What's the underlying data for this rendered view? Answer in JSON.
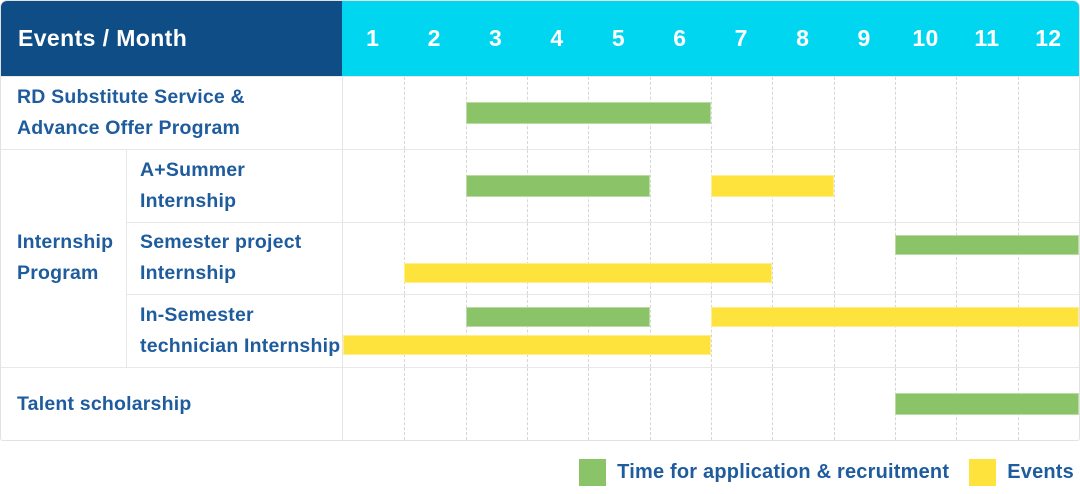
{
  "header": {
    "title": "Events / Month"
  },
  "colors": {
    "header_bg": "#0e4d85",
    "months_bg": "#01d6f1",
    "label_text": "#1e5c9d",
    "grid_dashed": "#d6d6d6",
    "row_divider": "#e8e8e8",
    "outer_border": "#e2e2e2",
    "application_green": "#8ac368",
    "events_yellow": "#ffe33d"
  },
  "chart_data": {
    "type": "bar",
    "subtype": "gantt-table",
    "title": "Events / Month",
    "x_axis": {
      "label": "Month",
      "ticks": [
        "1",
        "2",
        "3",
        "4",
        "5",
        "6",
        "7",
        "8",
        "9",
        "10",
        "11",
        "12"
      ],
      "range": [
        1,
        12
      ],
      "gridlines": "dashed-vertical"
    },
    "series": {
      "application": {
        "label": "Time for application & recruitment",
        "color": "#8ac368"
      },
      "events": {
        "label": "Events",
        "color": "#ffe33d"
      }
    },
    "group": {
      "id": "internship-program",
      "label_lines": [
        "Internship",
        "Program"
      ],
      "row_span": [
        1,
        3
      ]
    },
    "rows": [
      {
        "id": "rd-substitute-service",
        "group": null,
        "label_lines": [
          "RD Substitute Service &",
          "Advance Offer Program"
        ],
        "bars": [
          {
            "series": "application",
            "start_month": 3,
            "end_month": 6,
            "line": "center"
          }
        ]
      },
      {
        "id": "a-plus-summer-internship",
        "group": "internship-program",
        "label_lines": [
          "A+Summer",
          "Internship"
        ],
        "bars": [
          {
            "series": "application",
            "start_month": 3,
            "end_month": 5,
            "line": "center"
          },
          {
            "series": "events",
            "start_month": 7,
            "end_month": 8,
            "line": "center"
          }
        ]
      },
      {
        "id": "semester-project-internship",
        "group": "internship-program",
        "label_lines": [
          "Semester project",
          "Internship"
        ],
        "bars": [
          {
            "series": "application",
            "start_month": 10,
            "end_month": 12,
            "line": "top"
          },
          {
            "series": "events",
            "start_month": 2,
            "end_month": 7,
            "line": "bottom"
          }
        ]
      },
      {
        "id": "in-semester-technician-internship",
        "group": "internship-program",
        "label_lines": [
          "In-Semester",
          "technician Internship"
        ],
        "bars": [
          {
            "series": "application",
            "start_month": 3,
            "end_month": 5,
            "line": "top"
          },
          {
            "series": "events",
            "start_month": 7,
            "end_month": 12,
            "line": "top"
          },
          {
            "series": "events",
            "start_month": 1,
            "end_month": 6,
            "line": "bottom"
          }
        ]
      },
      {
        "id": "talent-scholarship",
        "group": null,
        "label_lines": [
          "Talent scholarship"
        ],
        "bars": [
          {
            "series": "application",
            "start_month": 10,
            "end_month": 12,
            "line": "center"
          }
        ]
      }
    ],
    "legend": {
      "position": "bottom-right",
      "items": [
        "application",
        "events"
      ]
    }
  }
}
